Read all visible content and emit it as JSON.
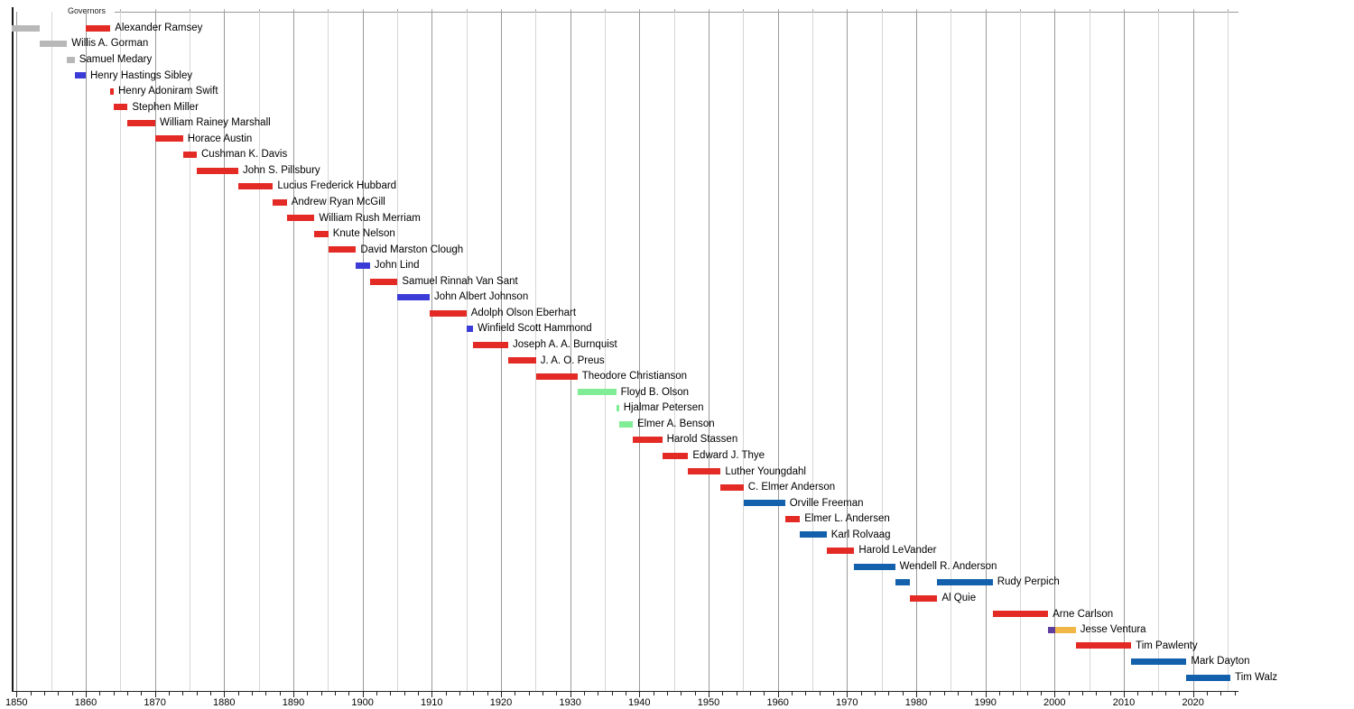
{
  "chart_data": {
    "type": "timeline",
    "title": "Governors",
    "subtitle": "",
    "xlabel": "",
    "ylabel": "",
    "x_axis": {
      "tick_labels": [
        "1850",
        "1860",
        "1870",
        "1880",
        "1890",
        "1900",
        "1910",
        "1920",
        "1930",
        "1940",
        "1950",
        "1960",
        "1970",
        "1980",
        "1990",
        "2000",
        "2010",
        "2020"
      ],
      "minor_tick_interval_years": 2,
      "grid_minor_interval_years": 5,
      "grid_major_interval_years": 10,
      "range_start": 1849.3,
      "range_end": 2026.6,
      "grid_on": true
    },
    "colors": {
      "territorial_gray": "#B8B8B8",
      "republican_red": "#E32A24",
      "democratic_blue": "#3B3BD8",
      "dfl_blue": "#1361AC",
      "farmer_labor_green": "#80EC96",
      "reform_purple": "#5F3F9E",
      "independence_orange": "#F0B646"
    },
    "rows": [
      {
        "name": "Alexander Ramsey",
        "bars": [
          {
            "start": 1849.35,
            "end": 1853.4,
            "color_key": "territorial_gray"
          },
          {
            "start": 1860.0,
            "end": 1863.55,
            "color_key": "republican_red"
          }
        ]
      },
      {
        "name": "Willis A. Gorman",
        "bars": [
          {
            "start": 1853.4,
            "end": 1857.3,
            "color_key": "territorial_gray"
          }
        ]
      },
      {
        "name": "Samuel Medary",
        "bars": [
          {
            "start": 1857.3,
            "end": 1858.4,
            "color_key": "territorial_gray"
          }
        ]
      },
      {
        "name": "Henry Hastings Sibley",
        "bars": [
          {
            "start": 1858.4,
            "end": 1860.0,
            "color_key": "democratic_blue"
          }
        ]
      },
      {
        "name": "Henry Adoniram Swift",
        "bars": [
          {
            "start": 1863.55,
            "end": 1864.05,
            "color_key": "republican_red"
          }
        ]
      },
      {
        "name": "Stephen Miller",
        "bars": [
          {
            "start": 1864.05,
            "end": 1866.05,
            "color_key": "republican_red"
          }
        ]
      },
      {
        "name": "William Rainey Marshall",
        "bars": [
          {
            "start": 1866.05,
            "end": 1870.05,
            "color_key": "republican_red"
          }
        ]
      },
      {
        "name": "Horace Austin",
        "bars": [
          {
            "start": 1870.05,
            "end": 1874.05,
            "color_key": "republican_red"
          }
        ]
      },
      {
        "name": "Cushman K. Davis",
        "bars": [
          {
            "start": 1874.05,
            "end": 1876.05,
            "color_key": "republican_red"
          }
        ]
      },
      {
        "name": "John S. Pillsbury",
        "bars": [
          {
            "start": 1876.05,
            "end": 1882.05,
            "color_key": "republican_red"
          }
        ]
      },
      {
        "name": "Lucius Frederick Hubbard",
        "bars": [
          {
            "start": 1882.05,
            "end": 1887.05,
            "color_key": "republican_red"
          }
        ]
      },
      {
        "name": "Andrew Ryan McGill",
        "bars": [
          {
            "start": 1887.05,
            "end": 1889.05,
            "color_key": "republican_red"
          }
        ]
      },
      {
        "name": "William Rush Merriam",
        "bars": [
          {
            "start": 1889.05,
            "end": 1893.05,
            "color_key": "republican_red"
          }
        ]
      },
      {
        "name": "Knute Nelson",
        "bars": [
          {
            "start": 1893.05,
            "end": 1895.05,
            "color_key": "republican_red"
          }
        ]
      },
      {
        "name": "David Marston Clough",
        "bars": [
          {
            "start": 1895.05,
            "end": 1899.05,
            "color_key": "republican_red"
          }
        ]
      },
      {
        "name": "John Lind",
        "bars": [
          {
            "start": 1899.05,
            "end": 1901.05,
            "color_key": "democratic_blue"
          }
        ]
      },
      {
        "name": "Samuel Rinnah Van Sant",
        "bars": [
          {
            "start": 1901.05,
            "end": 1905.05,
            "color_key": "republican_red"
          }
        ]
      },
      {
        "name": "John Albert Johnson",
        "bars": [
          {
            "start": 1905.05,
            "end": 1909.7,
            "color_key": "democratic_blue"
          }
        ]
      },
      {
        "name": "Adolph Olson Eberhart",
        "bars": [
          {
            "start": 1909.7,
            "end": 1915.0,
            "color_key": "republican_red"
          }
        ]
      },
      {
        "name": "Winfield Scott Hammond",
        "bars": [
          {
            "start": 1915.0,
            "end": 1915.97,
            "color_key": "democratic_blue"
          }
        ]
      },
      {
        "name": "Joseph A. A. Burnquist",
        "bars": [
          {
            "start": 1915.97,
            "end": 1921.05,
            "color_key": "republican_red"
          }
        ]
      },
      {
        "name": "J. A. O. Preus",
        "bars": [
          {
            "start": 1921.05,
            "end": 1925.05,
            "color_key": "republican_red"
          }
        ]
      },
      {
        "name": "Theodore Christianson",
        "bars": [
          {
            "start": 1925.05,
            "end": 1931.05,
            "color_key": "republican_red"
          }
        ]
      },
      {
        "name": "Floyd B. Olson",
        "bars": [
          {
            "start": 1931.05,
            "end": 1936.65,
            "color_key": "farmer_labor_green"
          }
        ]
      },
      {
        "name": "Hjalmar Petersen",
        "bars": [
          {
            "start": 1936.65,
            "end": 1937.05,
            "color_key": "farmer_labor_green"
          }
        ]
      },
      {
        "name": "Elmer A. Benson",
        "bars": [
          {
            "start": 1937.05,
            "end": 1939.05,
            "color_key": "farmer_labor_green"
          }
        ]
      },
      {
        "name": "Harold Stassen",
        "bars": [
          {
            "start": 1939.05,
            "end": 1943.3,
            "color_key": "republican_red"
          }
        ]
      },
      {
        "name": "Edward J. Thye",
        "bars": [
          {
            "start": 1943.3,
            "end": 1947.05,
            "color_key": "republican_red"
          }
        ]
      },
      {
        "name": "Luther Youngdahl",
        "bars": [
          {
            "start": 1947.05,
            "end": 1951.75,
            "color_key": "republican_red"
          }
        ]
      },
      {
        "name": "C. Elmer Anderson",
        "bars": [
          {
            "start": 1951.75,
            "end": 1955.05,
            "color_key": "republican_red"
          }
        ]
      },
      {
        "name": "Orville Freeman",
        "bars": [
          {
            "start": 1955.05,
            "end": 1961.05,
            "color_key": "dfl_blue"
          }
        ]
      },
      {
        "name": "Elmer L. Andersen",
        "bars": [
          {
            "start": 1961.05,
            "end": 1963.2,
            "color_key": "republican_red"
          }
        ]
      },
      {
        "name": "Karl Rolvaag",
        "bars": [
          {
            "start": 1963.2,
            "end": 1967.05,
            "color_key": "dfl_blue"
          }
        ]
      },
      {
        "name": "Harold LeVander",
        "bars": [
          {
            "start": 1967.05,
            "end": 1971.05,
            "color_key": "republican_red"
          }
        ]
      },
      {
        "name": "Wendell R. Anderson",
        "bars": [
          {
            "start": 1971.05,
            "end": 1976.95,
            "color_key": "dfl_blue"
          }
        ]
      },
      {
        "name": "Rudy Perpich",
        "bars": [
          {
            "start": 1976.95,
            "end": 1979.05,
            "color_key": "dfl_blue"
          },
          {
            "start": 1983.05,
            "end": 1991.05,
            "color_key": "dfl_blue"
          }
        ]
      },
      {
        "name": "Al Quie",
        "bars": [
          {
            "start": 1979.05,
            "end": 1983.05,
            "color_key": "republican_red"
          }
        ]
      },
      {
        "name": "Arne Carlson",
        "bars": [
          {
            "start": 1991.05,
            "end": 1999.05,
            "color_key": "republican_red"
          }
        ]
      },
      {
        "name": "Jesse Ventura",
        "bars": [
          {
            "start": 1999.05,
            "end": 2000.1,
            "color_key": "reform_purple"
          },
          {
            "start": 2000.1,
            "end": 2003.05,
            "color_key": "independence_orange"
          }
        ]
      },
      {
        "name": "Tim Pawlenty",
        "bars": [
          {
            "start": 2003.05,
            "end": 2011.05,
            "color_key": "republican_red"
          }
        ]
      },
      {
        "name": "Mark Dayton",
        "bars": [
          {
            "start": 2011.05,
            "end": 2019.05,
            "color_key": "dfl_blue"
          }
        ]
      },
      {
        "name": "Tim Walz",
        "bars": [
          {
            "start": 2019.05,
            "end": 2025.4,
            "color_key": "dfl_blue"
          }
        ]
      }
    ]
  }
}
